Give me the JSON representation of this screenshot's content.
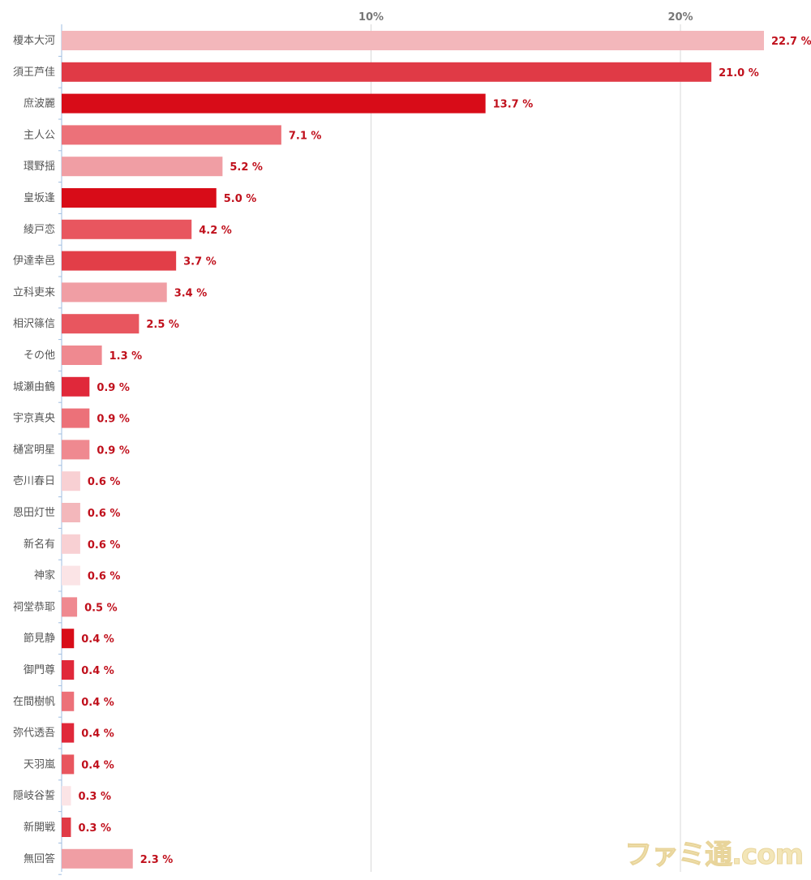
{
  "chart_data": {
    "type": "bar",
    "orientation": "horizontal",
    "title": "",
    "xlabel": "",
    "ylabel": "",
    "xlim": [
      0,
      23.4
    ],
    "ticks": [
      {
        "value": 10,
        "label": "10%"
      },
      {
        "value": 20,
        "label": "20%"
      }
    ],
    "grid": true,
    "legend": "none",
    "value_suffix": " %",
    "categories": [
      "榎本大河",
      "須王芦佳",
      "庶波麗",
      "主人公",
      "環野揺",
      "皇坂逢",
      "綾戸恋",
      "伊達幸邑",
      "立科吏来",
      "相沢篠信",
      "その他",
      "城瀬由鶴",
      "宇京真央",
      "樋宮明星",
      "壱川春日",
      "恩田灯世",
      "新名有",
      "神家",
      "祠堂恭耶",
      "節見静",
      "御門尊",
      "在間樹帆",
      "弥代透吾",
      "天羽嵐",
      "隠岐谷誓",
      "新開戦",
      "無回答"
    ],
    "values": [
      22.7,
      21.0,
      13.7,
      7.1,
      5.2,
      5.0,
      4.2,
      3.7,
      3.4,
      2.5,
      1.3,
      0.9,
      0.9,
      0.9,
      0.6,
      0.6,
      0.6,
      0.6,
      0.5,
      0.4,
      0.4,
      0.4,
      0.4,
      0.4,
      0.3,
      0.3,
      2.3
    ],
    "value_labels": [
      "22.7",
      "21.0",
      "13.7",
      "7.1",
      "5.2",
      "5.0",
      "4.2",
      "3.7",
      "3.4",
      "2.5",
      "1.3",
      "0.9",
      "0.9",
      "0.9",
      "0.6",
      "0.6",
      "0.6",
      "0.6",
      "0.5",
      "0.4",
      "0.4",
      "0.4",
      "0.4",
      "0.4",
      "0.3",
      "0.3",
      "2.3"
    ],
    "colors": [
      "#f3b7bb",
      "#e03a46",
      "#d80c18",
      "#ec7179",
      "#f09ea4",
      "#d80c18",
      "#e8565f",
      "#e23e48",
      "#f09ea4",
      "#e8565f",
      "#ef8990",
      "#e0283a",
      "#ec7179",
      "#ef8990",
      "#f8d0d3",
      "#f3b7bb",
      "#f8d0d3",
      "#fbe4e6",
      "#ef8990",
      "#d80c18",
      "#e0283a",
      "#ec7179",
      "#e0283a",
      "#e8565f",
      "#fbe4e6",
      "#e03a46",
      "#f09ea4"
    ]
  },
  "watermark": "ファミ通.com"
}
